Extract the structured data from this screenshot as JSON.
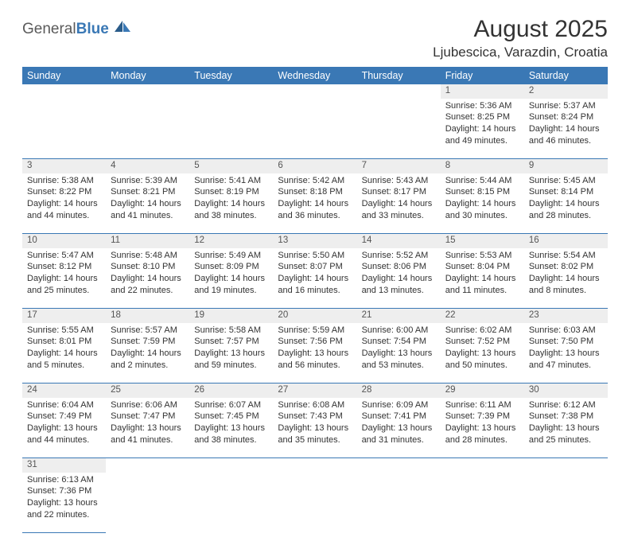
{
  "logo": {
    "part1": "General",
    "part2": "Blue"
  },
  "title": "August 2025",
  "location": "Ljubescica, Varazdin, Croatia",
  "colors": {
    "header_bg": "#3a78b5",
    "daynum_bg": "#eeeeee",
    "cell_border": "#3a78b5",
    "text": "#333333"
  },
  "day_headers": [
    "Sunday",
    "Monday",
    "Tuesday",
    "Wednesday",
    "Thursday",
    "Friday",
    "Saturday"
  ],
  "weeks": [
    [
      null,
      null,
      null,
      null,
      null,
      {
        "n": "1",
        "sr": "5:36 AM",
        "ss": "8:25 PM",
        "dl": "14 hours and 49 minutes."
      },
      {
        "n": "2",
        "sr": "5:37 AM",
        "ss": "8:24 PM",
        "dl": "14 hours and 46 minutes."
      }
    ],
    [
      {
        "n": "3",
        "sr": "5:38 AM",
        "ss": "8:22 PM",
        "dl": "14 hours and 44 minutes."
      },
      {
        "n": "4",
        "sr": "5:39 AM",
        "ss": "8:21 PM",
        "dl": "14 hours and 41 minutes."
      },
      {
        "n": "5",
        "sr": "5:41 AM",
        "ss": "8:19 PM",
        "dl": "14 hours and 38 minutes."
      },
      {
        "n": "6",
        "sr": "5:42 AM",
        "ss": "8:18 PM",
        "dl": "14 hours and 36 minutes."
      },
      {
        "n": "7",
        "sr": "5:43 AM",
        "ss": "8:17 PM",
        "dl": "14 hours and 33 minutes."
      },
      {
        "n": "8",
        "sr": "5:44 AM",
        "ss": "8:15 PM",
        "dl": "14 hours and 30 minutes."
      },
      {
        "n": "9",
        "sr": "5:45 AM",
        "ss": "8:14 PM",
        "dl": "14 hours and 28 minutes."
      }
    ],
    [
      {
        "n": "10",
        "sr": "5:47 AM",
        "ss": "8:12 PM",
        "dl": "14 hours and 25 minutes."
      },
      {
        "n": "11",
        "sr": "5:48 AM",
        "ss": "8:10 PM",
        "dl": "14 hours and 22 minutes."
      },
      {
        "n": "12",
        "sr": "5:49 AM",
        "ss": "8:09 PM",
        "dl": "14 hours and 19 minutes."
      },
      {
        "n": "13",
        "sr": "5:50 AM",
        "ss": "8:07 PM",
        "dl": "14 hours and 16 minutes."
      },
      {
        "n": "14",
        "sr": "5:52 AM",
        "ss": "8:06 PM",
        "dl": "14 hours and 13 minutes."
      },
      {
        "n": "15",
        "sr": "5:53 AM",
        "ss": "8:04 PM",
        "dl": "14 hours and 11 minutes."
      },
      {
        "n": "16",
        "sr": "5:54 AM",
        "ss": "8:02 PM",
        "dl": "14 hours and 8 minutes."
      }
    ],
    [
      {
        "n": "17",
        "sr": "5:55 AM",
        "ss": "8:01 PM",
        "dl": "14 hours and 5 minutes."
      },
      {
        "n": "18",
        "sr": "5:57 AM",
        "ss": "7:59 PM",
        "dl": "14 hours and 2 minutes."
      },
      {
        "n": "19",
        "sr": "5:58 AM",
        "ss": "7:57 PM",
        "dl": "13 hours and 59 minutes."
      },
      {
        "n": "20",
        "sr": "5:59 AM",
        "ss": "7:56 PM",
        "dl": "13 hours and 56 minutes."
      },
      {
        "n": "21",
        "sr": "6:00 AM",
        "ss": "7:54 PM",
        "dl": "13 hours and 53 minutes."
      },
      {
        "n": "22",
        "sr": "6:02 AM",
        "ss": "7:52 PM",
        "dl": "13 hours and 50 minutes."
      },
      {
        "n": "23",
        "sr": "6:03 AM",
        "ss": "7:50 PM",
        "dl": "13 hours and 47 minutes."
      }
    ],
    [
      {
        "n": "24",
        "sr": "6:04 AM",
        "ss": "7:49 PM",
        "dl": "13 hours and 44 minutes."
      },
      {
        "n": "25",
        "sr": "6:06 AM",
        "ss": "7:47 PM",
        "dl": "13 hours and 41 minutes."
      },
      {
        "n": "26",
        "sr": "6:07 AM",
        "ss": "7:45 PM",
        "dl": "13 hours and 38 minutes."
      },
      {
        "n": "27",
        "sr": "6:08 AM",
        "ss": "7:43 PM",
        "dl": "13 hours and 35 minutes."
      },
      {
        "n": "28",
        "sr": "6:09 AM",
        "ss": "7:41 PM",
        "dl": "13 hours and 31 minutes."
      },
      {
        "n": "29",
        "sr": "6:11 AM",
        "ss": "7:39 PM",
        "dl": "13 hours and 28 minutes."
      },
      {
        "n": "30",
        "sr": "6:12 AM",
        "ss": "7:38 PM",
        "dl": "13 hours and 25 minutes."
      }
    ],
    [
      {
        "n": "31",
        "sr": "6:13 AM",
        "ss": "7:36 PM",
        "dl": "13 hours and 22 minutes."
      },
      null,
      null,
      null,
      null,
      null,
      null
    ]
  ],
  "labels": {
    "sunrise": "Sunrise: ",
    "sunset": "Sunset: ",
    "daylight": "Daylight: "
  }
}
